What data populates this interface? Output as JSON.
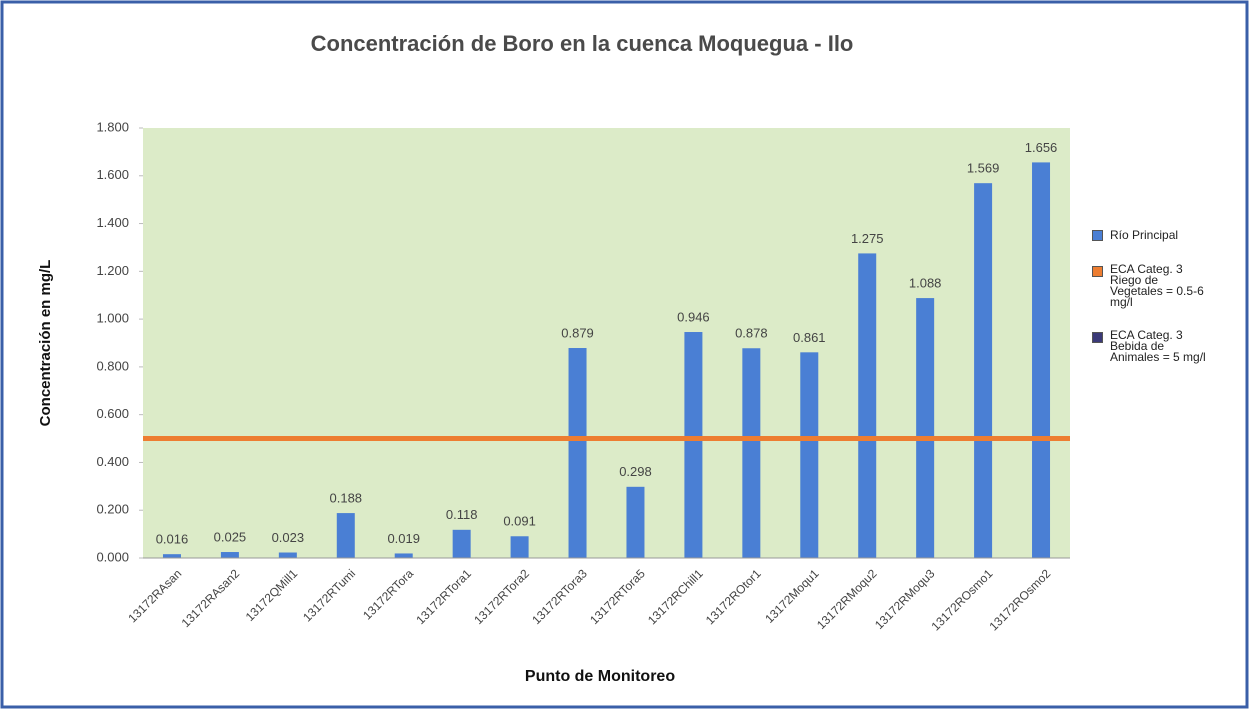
{
  "chart_data": {
    "type": "bar",
    "title": "Concentración de Boro en la cuenca Moquegua - Ilo",
    "y_label": "Concentración en mg/L",
    "x_label": "Punto de Monitoreo",
    "categories": [
      "13172RAsan",
      "13172RAsan2",
      "13172QMill1",
      "13172RTumi",
      "13172RTora",
      "13172RTora1",
      "13172RTora2",
      "13172RTora3",
      "13172RTora5",
      "13172RChill1",
      "13172ROtor1",
      "13172Moqu1",
      "13172RMoqu2",
      "13172RMoqu3",
      "13172ROsmo1",
      "13172ROsmo2"
    ],
    "series": [
      {
        "name": "Río Principal",
        "color": "#4a7fd4",
        "values": [
          0.016,
          0.025,
          0.023,
          0.188,
          0.019,
          0.118,
          0.091,
          0.879,
          0.298,
          0.946,
          0.878,
          0.861,
          1.275,
          1.088,
          1.569,
          1.656
        ]
      },
      {
        "name": "ECA Categ. 3 Riego de Vegetales = 0.5-6 mg/l",
        "color": "#ed7d31",
        "type": "line",
        "values": [
          0.5,
          0.5,
          0.5,
          0.5,
          0.5,
          0.5,
          0.5,
          0.5,
          0.5,
          0.5,
          0.5,
          0.5,
          0.5,
          0.5,
          0.5,
          0.5
        ]
      },
      {
        "name": "ECA Categ. 3 Bebida de Animales = 5 mg/l",
        "color": "#3b3a78",
        "type": "line"
      }
    ],
    "ylim": [
      0,
      1.8
    ],
    "yticks": [
      {
        "value": 0,
        "label": "0.000"
      },
      {
        "value": 0.2,
        "label": "0.200"
      },
      {
        "value": 0.4,
        "label": "0.400"
      },
      {
        "value": 0.6,
        "label": "0.600"
      },
      {
        "value": 0.8,
        "label": "0.800"
      },
      {
        "value": 1,
        "label": "1.000"
      },
      {
        "value": 1.2,
        "label": "1.200"
      },
      {
        "value": 1.4,
        "label": "1.400"
      },
      {
        "value": 1.6,
        "label": "1.600"
      },
      {
        "value": 1.8,
        "label": "1.800"
      }
    ],
    "grid": false,
    "legend": "right"
  }
}
